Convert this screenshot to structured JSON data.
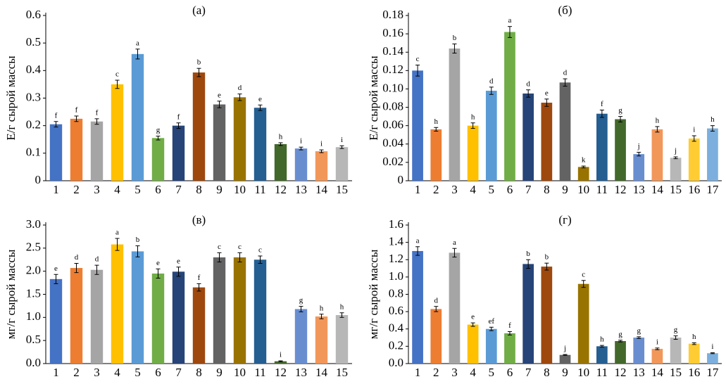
{
  "chart_data": [
    {
      "type": "bar",
      "title": "(а)",
      "y_label": "Е/г сырой массы",
      "categories": [
        "1",
        "2",
        "3",
        "4",
        "5",
        "6",
        "7",
        "8",
        "9",
        "10",
        "11",
        "12",
        "13",
        "14",
        "15"
      ],
      "values": [
        0.205,
        0.225,
        0.215,
        0.35,
        0.46,
        0.155,
        0.2,
        0.393,
        0.277,
        0.303,
        0.265,
        0.133,
        0.117,
        0.107,
        0.122
      ],
      "errors": [
        0.01,
        0.01,
        0.01,
        0.015,
        0.018,
        0.007,
        0.01,
        0.015,
        0.012,
        0.012,
        0.01,
        0.005,
        0.005,
        0.005,
        0.005
      ],
      "letters": [
        "f",
        "f",
        "f",
        "c",
        "a",
        "g",
        "f",
        "b",
        "e",
        "d",
        "e",
        "h",
        "i",
        "i",
        "i"
      ],
      "colors": [
        "#4472c4",
        "#ed7d31",
        "#a5a5a5",
        "#ffc000",
        "#5b9bd5",
        "#70ad47",
        "#264478",
        "#9e480e",
        "#636363",
        "#997300",
        "#255e91",
        "#43682b",
        "#698ed0",
        "#f1975a",
        "#b7b7b7"
      ],
      "ylim": [
        0,
        0.6
      ],
      "yticks": [
        0,
        0.1,
        0.2,
        0.3,
        0.4,
        0.5,
        0.6
      ]
    },
    {
      "type": "bar",
      "title": "(б)",
      "y_label": "Е/г сырой массы",
      "categories": [
        "1",
        "2",
        "3",
        "4",
        "5",
        "6",
        "7",
        "8",
        "9",
        "10",
        "11",
        "12",
        "13",
        "14",
        "15",
        "16",
        "17"
      ],
      "values": [
        0.12,
        0.056,
        0.144,
        0.06,
        0.098,
        0.162,
        0.095,
        0.085,
        0.107,
        0.015,
        0.073,
        0.067,
        0.029,
        0.056,
        0.025,
        0.046,
        0.057
      ],
      "errors": [
        0.006,
        0.002,
        0.005,
        0.003,
        0.004,
        0.006,
        0.004,
        0.004,
        0.004,
        0.001,
        0.004,
        0.003,
        0.002,
        0.003,
        0.001,
        0.003,
        0.003
      ],
      "letters": [
        "c",
        "h",
        "b",
        "h",
        "d",
        "a",
        "d",
        "e",
        "d",
        "k",
        "f",
        "g",
        "j",
        "h",
        "j",
        "i",
        "h"
      ],
      "colors": [
        "#4472c4",
        "#ed7d31",
        "#a5a5a5",
        "#ffc000",
        "#5b9bd5",
        "#70ad47",
        "#264478",
        "#9e480e",
        "#636363",
        "#997300",
        "#255e91",
        "#43682b",
        "#698ed0",
        "#f1975a",
        "#b7b7b7",
        "#ffcd33",
        "#7cafdd"
      ],
      "ylim": [
        0,
        0.18
      ],
      "yticks": [
        0,
        0.02,
        0.04,
        0.06,
        0.08,
        {
          "value": 0.1,
          "label": "0.10"
        },
        0.12,
        0.14,
        0.16,
        0.18
      ]
    },
    {
      "type": "bar",
      "title": "(в)",
      "y_label": "мг/г сырой массы",
      "categories": [
        "1",
        "2",
        "3",
        "4",
        "5",
        "6",
        "7",
        "8",
        "9",
        "10",
        "11",
        "12",
        "13",
        "14",
        "15"
      ],
      "values": [
        1.83,
        2.07,
        2.03,
        2.58,
        2.43,
        1.95,
        1.99,
        1.65,
        2.3,
        2.3,
        2.25,
        0.05,
        1.18,
        1.02,
        1.05
      ],
      "errors": [
        0.1,
        0.1,
        0.1,
        0.13,
        0.12,
        0.1,
        0.1,
        0.08,
        0.1,
        0.1,
        0.08,
        0.01,
        0.06,
        0.05,
        0.05
      ],
      "letters": [
        "e",
        "d",
        "d",
        "a",
        "b",
        "e",
        "e",
        "f",
        "c",
        "c",
        "c",
        "i",
        "g",
        "h",
        "h"
      ],
      "colors": [
        "#4472c4",
        "#ed7d31",
        "#a5a5a5",
        "#ffc000",
        "#5b9bd5",
        "#70ad47",
        "#264478",
        "#9e480e",
        "#636363",
        "#997300",
        "#255e91",
        "#43682b",
        "#698ed0",
        "#f1975a",
        "#b7b7b7"
      ],
      "ylim": [
        0,
        3
      ],
      "yticks": [
        {
          "value": 0,
          "label": "0.0"
        },
        0.5,
        {
          "value": 1,
          "label": "1.0"
        },
        1.5,
        {
          "value": 2,
          "label": "2.0"
        },
        2.5,
        {
          "value": 3,
          "label": "3.0"
        }
      ]
    },
    {
      "type": "bar",
      "title": "(г)",
      "y_label": "мг/г сырой массы",
      "categories": [
        "1",
        "2",
        "3",
        "4",
        "5",
        "6",
        "7",
        "8",
        "9",
        "10",
        "11",
        "12",
        "13",
        "14",
        "15",
        "16",
        "17"
      ],
      "values": [
        1.3,
        0.63,
        1.28,
        0.45,
        0.4,
        0.35,
        1.15,
        1.12,
        0.1,
        0.92,
        0.2,
        0.26,
        0.3,
        0.17,
        0.3,
        0.23,
        0.12
      ],
      "errors": [
        0.05,
        0.03,
        0.05,
        0.02,
        0.02,
        0.02,
        0.05,
        0.04,
        0.005,
        0.04,
        0.01,
        0.01,
        0.01,
        0.01,
        0.02,
        0.01,
        0.005
      ],
      "letters": [
        "a",
        "d",
        "a",
        "e",
        "ef",
        "f",
        "b",
        "b",
        "j",
        "c",
        "h",
        "g",
        "g",
        "i",
        "g",
        "h",
        "i"
      ],
      "colors": [
        "#4472c4",
        "#ed7d31",
        "#a5a5a5",
        "#ffc000",
        "#5b9bd5",
        "#70ad47",
        "#264478",
        "#9e480e",
        "#636363",
        "#997300",
        "#255e91",
        "#43682b",
        "#698ed0",
        "#f1975a",
        "#b7b7b7",
        "#ffcd33",
        "#7cafdd"
      ],
      "ylim": [
        0,
        1.6
      ],
      "yticks": [
        {
          "value": 0,
          "label": "0.0"
        },
        0.2,
        0.4,
        0.6,
        0.8,
        {
          "value": 1,
          "label": "1.0"
        },
        1.2,
        1.4,
        1.6
      ]
    }
  ]
}
